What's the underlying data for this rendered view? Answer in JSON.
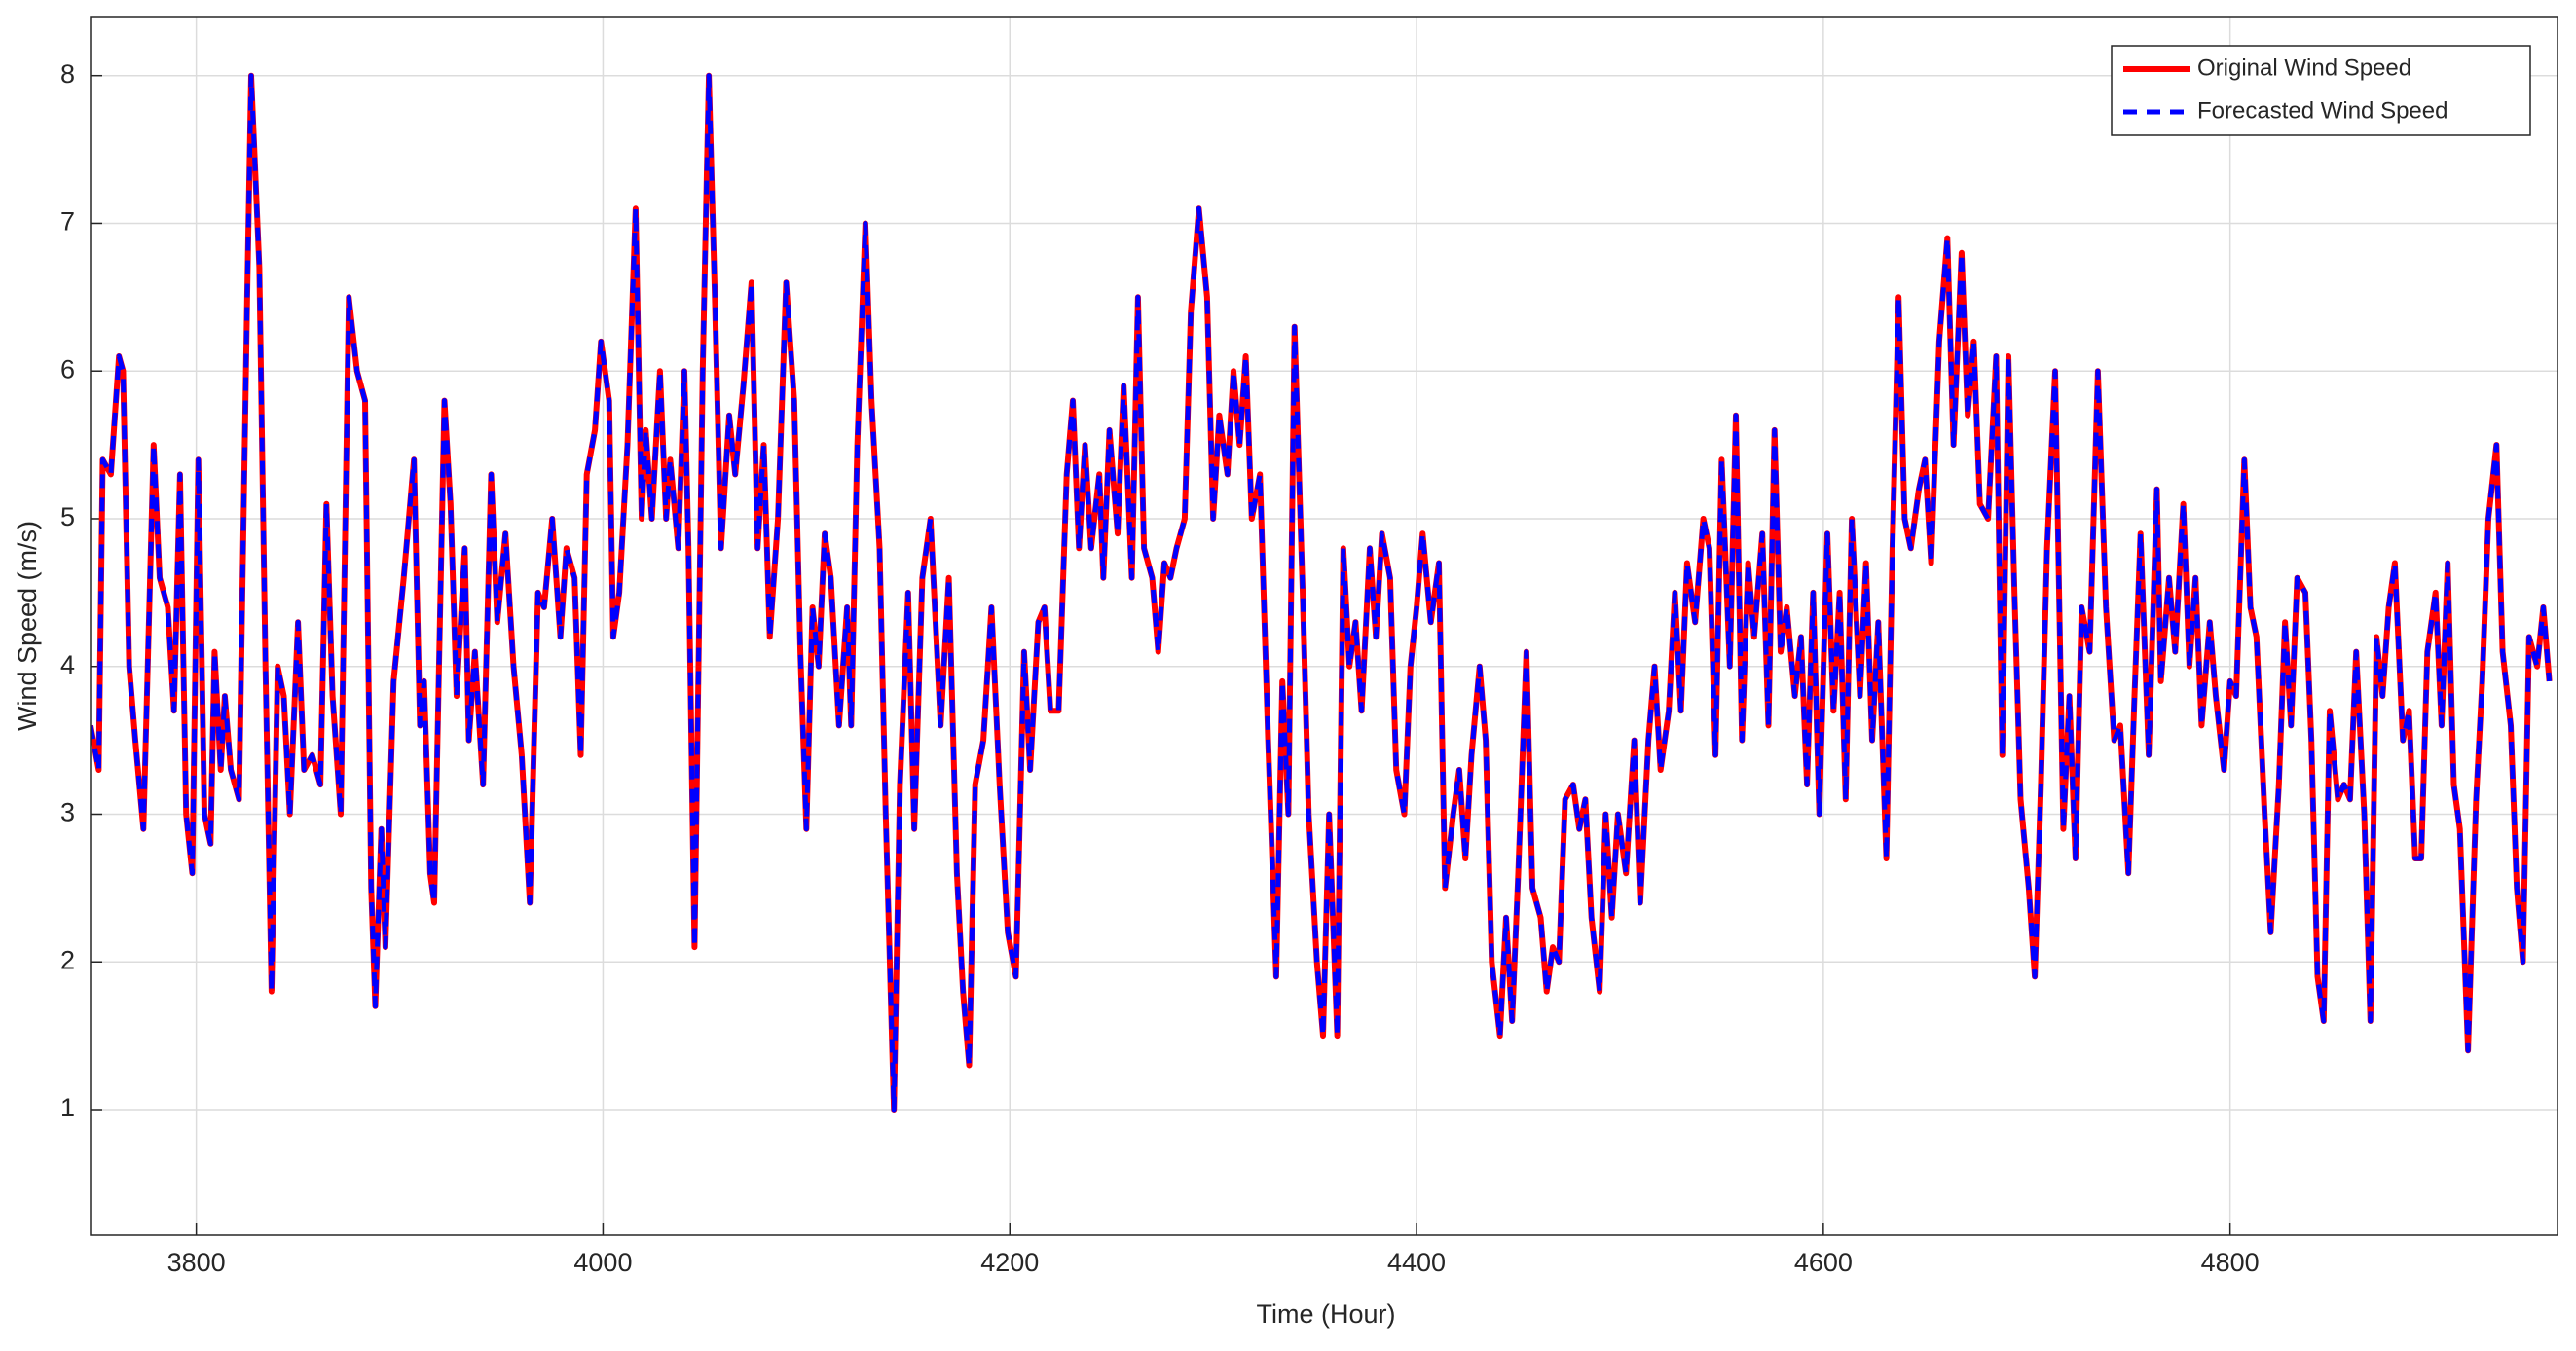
{
  "chart_data": {
    "type": "line",
    "xlabel": "Time (Hour)",
    "ylabel": "Wind Speed (m/s)",
    "xlim": [
      3748,
      4961
    ],
    "xticks": [
      3800,
      4000,
      4200,
      4400,
      4600,
      4800
    ],
    "ylim": [
      0.15,
      8.4
    ],
    "yticks": [
      1,
      2,
      3,
      4,
      5,
      6,
      7,
      8
    ],
    "grid": true,
    "legend": "upper right",
    "x": [
      3748,
      3752,
      3754,
      3758,
      3762,
      3764,
      3767,
      3770,
      3774,
      3779,
      3782,
      3786,
      3789,
      3792,
      3795,
      3798,
      3801,
      3804,
      3807,
      3809,
      3812,
      3814,
      3817,
      3821,
      3825,
      3827,
      3831,
      3834,
      3837,
      3840,
      3843,
      3846,
      3850,
      3853,
      3857,
      3861,
      3864,
      3867,
      3871,
      3875,
      3879,
      3883,
      3886,
      3888,
      3891,
      3893,
      3897,
      3902,
      3907,
      3910,
      3912,
      3915,
      3917,
      3922,
      3925,
      3928,
      3932,
      3934,
      3937,
      3941,
      3945,
      3948,
      3952,
      3956,
      3960,
      3964,
      3968,
      3971,
      3975,
      3979,
      3982,
      3986,
      3989,
      3992,
      3996,
      3999,
      4003,
      4005,
      4008,
      4012,
      4016,
      4019,
      4021,
      4024,
      4028,
      4031,
      4033,
      4037,
      4040,
      4042,
      4045,
      4049,
      4052,
      4055,
      4058,
      4062,
      4065,
      4069,
      4073,
      4076,
      4079,
      4082,
      4086,
      4090,
      4094,
      4097,
      4100,
      4103,
      4106,
      4109,
      4112,
      4116,
      4120,
      4122,
      4125,
      4129,
      4132,
      4136,
      4139,
      4143,
      4146,
      4150,
      4153,
      4157,
      4161,
      4166,
      4170,
      4174,
      4177,
      4180,
      4183,
      4187,
      4191,
      4195,
      4199,
      4203,
      4207,
      4210,
      4214,
      4217,
      4220,
      4224,
      4228,
      4231,
      4234,
      4237,
      4240,
      4244,
      4246,
      4249,
      4253,
      4256,
      4260,
      4263,
      4266,
      4270,
      4273,
      4276,
      4279,
      4282,
      4286,
      4289,
      4293,
      4297,
      4300,
      4303,
      4307,
      4310,
      4313,
      4316,
      4319,
      4323,
      4327,
      4331,
      4334,
      4337,
      4340,
      4344,
      4347,
      4351,
      4354,
      4357,
      4361,
      4364,
      4367,
      4370,
      4373,
      4377,
      4380,
      4383,
      4387,
      4390,
      4394,
      4397,
      4400,
      4403,
      4407,
      4411,
      4414,
      4418,
      4421,
      4424,
      4427,
      4431,
      4434,
      4437,
      4441,
      4444,
      4447,
      4450,
      4454,
      4457,
      4461,
      4464,
      4467,
      4470,
      4473,
      4477,
      4480,
      4483,
      4486,
      4490,
      4493,
      4496,
      4499,
      4503,
      4507,
      4510,
      4514,
      4517,
      4520,
      4524,
      4527,
      4530,
      4533,
      4537,
      4541,
      4544,
      4547,
      4550,
      4554,
      4557,
      4560,
      4563,
      4566,
      4570,
      4573,
      4576,
      4579,
      4582,
      4586,
      4589,
      4592,
      4595,
      4598,
      4602,
      4605,
      4608,
      4611,
      4614,
      4618,
      4621,
      4624,
      4627,
      4631,
      4634,
      4637,
      4640,
      4643,
      4647,
      4650,
      4653,
      4657,
      4661,
      4664,
      4668,
      4671,
      4674,
      4677,
      4681,
      4685,
      4688,
      4691,
      4694,
      4697,
      4701,
      4704,
      4707,
      4710,
      4714,
      4718,
      4721,
      4724,
      4727,
      4731,
      4735,
      4739,
      4743,
      4746,
      4750,
      4753,
      4756,
      4760,
      4764,
      4766,
      4770,
      4773,
      4777,
      4780,
      4783,
      4786,
      4790,
      4793,
      4797,
      4800,
      4803,
      4807,
      4810,
      4813,
      4817,
      4820,
      4824,
      4827,
      4830,
      4833,
      4837,
      4840,
      4843,
      4846,
      4849,
      4853,
      4856,
      4859,
      4862,
      4866,
      4869,
      4872,
      4875,
      4878,
      4881,
      4885,
      4888,
      4891,
      4894,
      4897,
      4901,
      4904,
      4907,
      4910,
      4913,
      4917,
      4921,
      4924,
      4927,
      4931,
      4934,
      4938,
      4941,
      4944,
      4947,
      4951,
      4954,
      4957
    ],
    "series": [
      {
        "name": "Original Wind Speed",
        "color": "#ff0000",
        "style": "solid",
        "values": [
          3.6,
          3.3,
          5.4,
          5.3,
          6.1,
          6.0,
          4.0,
          3.5,
          2.9,
          5.5,
          4.6,
          4.4,
          3.7,
          5.3,
          3.0,
          2.6,
          5.4,
          3.0,
          2.8,
          4.1,
          3.3,
          3.8,
          3.3,
          3.1,
          6.5,
          8.0,
          6.7,
          4.0,
          1.8,
          4.0,
          3.8,
          3.0,
          4.3,
          3.3,
          3.4,
          3.2,
          5.1,
          3.8,
          3.0,
          6.5,
          6.0,
          5.8,
          2.5,
          1.7,
          2.9,
          2.1,
          3.9,
          4.6,
          5.4,
          3.6,
          3.9,
          2.6,
          2.4,
          5.8,
          5.1,
          3.8,
          4.8,
          3.5,
          4.1,
          3.2,
          5.3,
          4.3,
          4.9,
          4.0,
          3.4,
          2.4,
          4.5,
          4.4,
          5.0,
          4.2,
          4.8,
          4.6,
          3.4,
          5.3,
          5.6,
          6.2,
          5.8,
          4.2,
          4.5,
          5.5,
          7.1,
          5.0,
          5.6,
          5.0,
          6.0,
          5.0,
          5.4,
          4.8,
          6.0,
          4.8,
          2.1,
          6.0,
          8.0,
          6.5,
          4.8,
          5.7,
          5.3,
          5.9,
          6.6,
          4.8,
          5.5,
          4.2,
          5.0,
          6.6,
          5.8,
          4.1,
          2.9,
          4.4,
          4.0,
          4.9,
          4.6,
          3.6,
          4.4,
          3.6,
          5.5,
          7.0,
          5.8,
          4.8,
          3.0,
          1.0,
          3.2,
          4.5,
          2.9,
          4.6,
          5.0,
          3.6,
          4.6,
          2.6,
          1.8,
          1.3,
          3.2,
          3.5,
          4.4,
          3.2,
          2.2,
          1.9,
          4.1,
          3.3,
          4.3,
          4.4,
          3.7,
          3.7,
          5.3,
          5.8,
          4.8,
          5.5,
          4.8,
          5.3,
          4.6,
          5.6,
          4.9,
          5.9,
          4.6,
          6.5,
          4.8,
          4.6,
          4.1,
          4.7,
          4.6,
          4.8,
          5.0,
          6.4,
          7.1,
          6.5,
          5.0,
          5.7,
          5.3,
          6.0,
          5.5,
          6.1,
          5.0,
          5.3,
          3.5,
          1.9,
          3.9,
          3.0,
          6.3,
          4.5,
          3.0,
          2.0,
          1.5,
          3.0,
          1.5,
          4.8,
          4.0,
          4.3,
          3.7,
          4.8,
          4.2,
          4.9,
          4.6,
          3.3,
          3.0,
          4.0,
          4.4,
          4.9,
          4.3,
          4.7,
          2.5,
          3.0,
          3.3,
          2.7,
          3.4,
          4.0,
          3.5,
          2.0,
          1.5,
          2.3,
          1.6,
          2.6,
          4.1,
          2.5,
          2.3,
          1.8,
          2.1,
          2.0,
          3.1,
          3.2,
          2.9,
          3.1,
          2.3,
          1.8,
          3.0,
          2.3,
          3.0,
          2.6,
          3.5,
          2.4,
          3.5,
          4.0,
          3.3,
          3.7,
          4.5,
          3.7,
          4.7,
          4.3,
          5.0,
          4.8,
          3.4,
          5.4,
          4.0,
          5.7,
          3.5,
          4.7,
          4.2,
          4.9,
          3.6,
          5.6,
          4.1,
          4.4,
          3.8,
          4.2,
          3.2,
          4.5,
          3.0,
          4.9,
          3.7,
          4.5,
          3.1,
          5.0,
          3.8,
          4.7,
          3.5,
          4.3,
          2.7,
          4.8,
          6.5,
          5.0,
          4.8,
          5.2,
          5.4,
          4.7,
          6.2,
          6.9,
          5.5,
          6.8,
          5.7,
          6.2,
          5.1,
          5.0,
          6.1,
          3.4,
          6.1,
          4.5,
          3.1,
          2.5,
          1.9,
          3.2,
          4.8,
          6.0,
          2.9,
          3.8,
          2.7,
          4.4,
          4.1,
          6.0,
          4.4,
          3.5,
          3.6,
          2.6,
          3.8,
          4.9,
          3.4,
          5.2,
          3.9,
          4.6,
          4.1,
          5.1,
          4.0,
          4.6,
          3.6,
          4.3,
          3.8,
          3.3,
          3.9,
          3.8,
          5.4,
          4.4,
          4.2,
          3.0,
          2.2,
          3.2,
          4.3,
          3.6,
          4.6,
          4.5,
          3.5,
          1.9,
          1.6,
          3.7,
          3.1,
          3.2,
          3.1,
          4.1,
          3.0,
          1.6,
          4.2,
          3.8,
          4.4,
          4.7,
          3.5,
          3.7,
          2.7,
          2.7,
          4.1,
          4.5,
          3.6,
          4.7,
          3.2,
          2.9,
          1.4,
          3.1,
          3.9,
          5.0,
          5.5,
          4.1,
          3.6,
          2.5,
          2.0,
          4.2,
          4.0,
          4.4,
          3.9
        ]
      },
      {
        "name": "Forecasted Wind Speed",
        "color": "#0000ff",
        "style": "dashed",
        "values": [
          3.6,
          3.3,
          5.4,
          5.3,
          6.1,
          6.0,
          4.0,
          3.5,
          2.9,
          5.5,
          4.6,
          4.4,
          3.7,
          5.3,
          3.0,
          2.6,
          5.4,
          3.0,
          2.8,
          4.1,
          3.3,
          3.8,
          3.3,
          3.1,
          6.5,
          8.0,
          6.7,
          4.0,
          1.8,
          4.0,
          3.8,
          3.0,
          4.3,
          3.3,
          3.4,
          3.2,
          5.1,
          3.8,
          3.0,
          6.5,
          6.0,
          5.8,
          2.5,
          1.7,
          2.9,
          2.1,
          3.9,
          4.6,
          5.4,
          3.6,
          3.9,
          2.6,
          2.4,
          5.8,
          5.1,
          3.8,
          4.8,
          3.5,
          4.1,
          3.2,
          5.3,
          4.3,
          4.9,
          4.0,
          3.4,
          2.4,
          4.5,
          4.4,
          5.0,
          4.2,
          4.8,
          4.6,
          3.4,
          5.3,
          5.6,
          6.2,
          5.8,
          4.2,
          4.5,
          5.5,
          7.1,
          5.0,
          5.6,
          5.0,
          6.0,
          5.0,
          5.4,
          4.8,
          6.0,
          4.8,
          2.1,
          6.0,
          8.0,
          6.5,
          4.8,
          5.7,
          5.3,
          5.9,
          6.6,
          4.8,
          5.5,
          4.2,
          5.0,
          6.6,
          5.8,
          4.1,
          2.9,
          4.4,
          4.0,
          4.9,
          4.6,
          3.6,
          4.4,
          3.6,
          5.5,
          7.0,
          5.8,
          4.8,
          3.0,
          1.0,
          3.2,
          4.5,
          2.9,
          4.6,
          5.0,
          3.6,
          4.6,
          2.6,
          1.8,
          1.3,
          3.2,
          3.5,
          4.4,
          3.2,
          2.2,
          1.9,
          4.1,
          3.3,
          4.3,
          4.4,
          3.7,
          3.7,
          5.3,
          5.8,
          4.8,
          5.5,
          4.8,
          5.3,
          4.6,
          5.6,
          4.9,
          5.9,
          4.6,
          6.5,
          4.8,
          4.6,
          4.1,
          4.7,
          4.6,
          4.8,
          5.0,
          6.4,
          7.1,
          6.5,
          5.0,
          5.7,
          5.3,
          6.0,
          5.5,
          6.1,
          5.0,
          5.3,
          3.5,
          1.9,
          3.9,
          3.0,
          6.3,
          4.5,
          3.0,
          2.0,
          1.5,
          3.0,
          1.5,
          4.8,
          4.0,
          4.3,
          3.7,
          4.8,
          4.2,
          4.9,
          4.6,
          3.3,
          3.0,
          4.0,
          4.4,
          4.9,
          4.3,
          4.7,
          2.5,
          3.0,
          3.3,
          2.7,
          3.4,
          4.0,
          3.5,
          2.0,
          1.5,
          2.3,
          1.6,
          2.6,
          4.1,
          2.5,
          2.3,
          1.8,
          2.1,
          2.0,
          3.1,
          3.2,
          2.9,
          3.1,
          2.3,
          1.8,
          3.0,
          2.3,
          3.0,
          2.6,
          3.5,
          2.4,
          3.5,
          4.0,
          3.3,
          3.7,
          4.5,
          3.7,
          4.7,
          4.3,
          5.0,
          4.8,
          3.4,
          5.4,
          4.0,
          5.7,
          3.5,
          4.7,
          4.2,
          4.9,
          3.6,
          5.6,
          4.1,
          4.4,
          3.8,
          4.2,
          3.2,
          4.5,
          3.0,
          4.9,
          3.7,
          4.5,
          3.1,
          5.0,
          3.8,
          4.7,
          3.5,
          4.3,
          2.7,
          4.8,
          6.5,
          5.0,
          4.8,
          5.2,
          5.4,
          4.7,
          6.2,
          6.9,
          5.5,
          6.8,
          5.7,
          6.2,
          5.1,
          5.0,
          6.1,
          3.4,
          6.1,
          4.5,
          3.1,
          2.5,
          1.9,
          3.2,
          4.8,
          6.0,
          2.9,
          3.8,
          2.7,
          4.4,
          4.1,
          6.0,
          4.4,
          3.5,
          3.6,
          2.6,
          3.8,
          4.9,
          3.4,
          5.2,
          3.9,
          4.6,
          4.1,
          5.1,
          4.0,
          4.6,
          3.6,
          4.3,
          3.8,
          3.3,
          3.9,
          3.8,
          5.4,
          4.4,
          4.2,
          3.0,
          2.2,
          3.2,
          4.3,
          3.6,
          4.6,
          4.5,
          3.5,
          1.9,
          1.6,
          3.7,
          3.1,
          3.2,
          3.1,
          4.1,
          3.0,
          1.6,
          4.2,
          3.8,
          4.4,
          4.7,
          3.5,
          3.7,
          2.7,
          2.7,
          4.1,
          4.5,
          3.6,
          4.7,
          3.2,
          2.9,
          1.4,
          3.1,
          3.9,
          5.0,
          5.5,
          4.1,
          3.6,
          2.5,
          2.0,
          4.2,
          4.0,
          4.4,
          3.9
        ]
      }
    ]
  }
}
